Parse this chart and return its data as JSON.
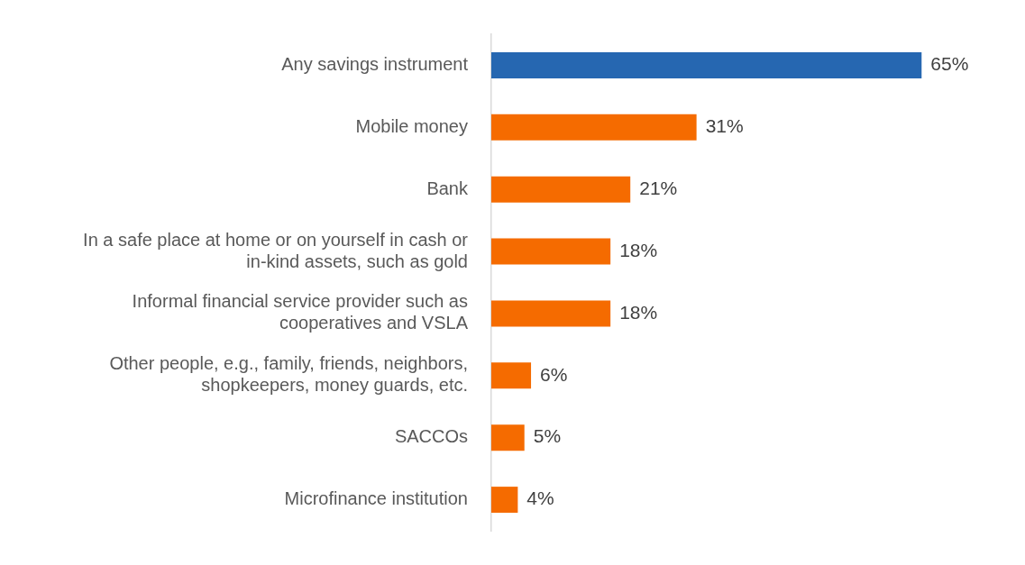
{
  "chart_data": {
    "type": "bar",
    "orientation": "horizontal",
    "categories": [
      "Any savings instrument",
      "Mobile money",
      "Bank",
      "In a safe place at home or on yourself in cash or in-kind assets, such as gold",
      "Informal financial service provider such as cooperatives and VSLA",
      "Other people, e.g., family, friends, neighbors, shopkeepers, money guards, etc.",
      "SACCOs",
      "Microfinance institution"
    ],
    "values": [
      65,
      31,
      21,
      18,
      18,
      6,
      5,
      4
    ],
    "colors": [
      "#2667b1",
      "#f56b00",
      "#f56b00",
      "#f56b00",
      "#f56b00",
      "#f56b00",
      "#f56b00",
      "#f56b00"
    ],
    "value_labels": [
      "65%",
      "31%",
      "21%",
      "18%",
      "18%",
      "6%",
      "5%",
      "4%"
    ],
    "legend": false,
    "tick_labels": "y"
  }
}
